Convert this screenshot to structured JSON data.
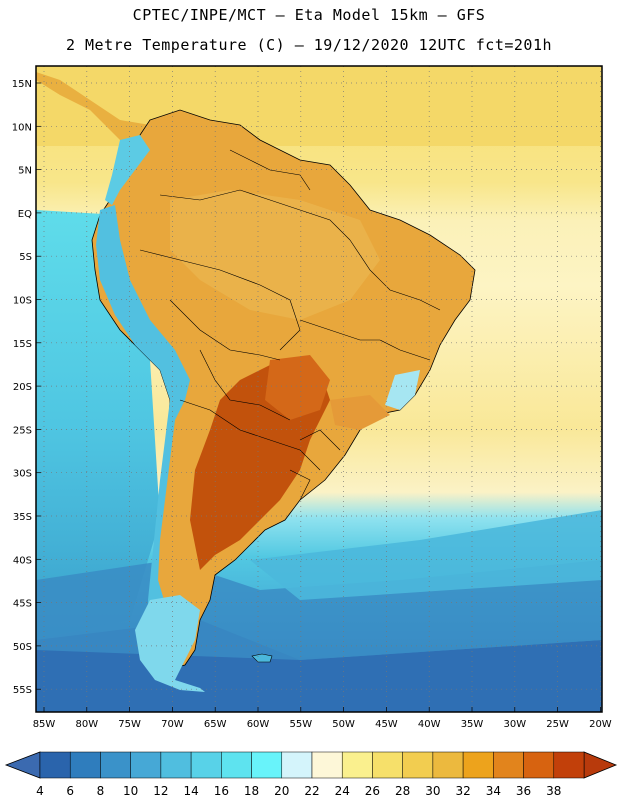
{
  "header": {
    "title_line1": "CPTEC/INPE/MCT –  Eta Model 15km – GFS",
    "title_line2": "2 Metre Temperature (C) – 19/12/2020 12UTC fct=201h"
  },
  "map": {
    "region": "South America",
    "lat_labels": [
      "15N",
      "10N",
      "5N",
      "EQ",
      "5S",
      "10S",
      "15S",
      "20S",
      "25S",
      "30S",
      "35S",
      "40S",
      "45S",
      "50S",
      "55S"
    ],
    "lon_labels": [
      "85W",
      "80W",
      "75W",
      "70W",
      "65W",
      "60W",
      "55W",
      "50W",
      "45W",
      "40W",
      "35W",
      "30W",
      "25W",
      "20W"
    ],
    "grid": "dotted",
    "colors": {
      "ocean_cool": "#4fd0e6",
      "ocean_cold": "#3ba0c8",
      "ocean_deep": "#2a7cc0",
      "ocean_warm": "#f7e88a",
      "land_warm": "#e8a33a",
      "land_hot": "#c45a12",
      "andes": "#52c0e0"
    }
  },
  "colorbar": {
    "labels": [
      "4",
      "6",
      "8",
      "10",
      "12",
      "14",
      "16",
      "18",
      "20",
      "22",
      "24",
      "26",
      "28",
      "30",
      "32",
      "34",
      "36",
      "38"
    ],
    "colors": [
      "#2a64ac",
      "#2f7dbd",
      "#3a92c9",
      "#46a8d6",
      "#50bedf",
      "#58d2e8",
      "#5ee3ef",
      "#68f3fa",
      "#d4f4fb",
      "#fdf7d8",
      "#faf08e",
      "#f6e06a",
      "#f2cd50",
      "#ecb93e",
      "#eda31c",
      "#e2841c",
      "#d76310",
      "#c2400a"
    ],
    "left_arrow_color": "#3b6ab0",
    "right_arrow_color": "#b83a0c"
  }
}
